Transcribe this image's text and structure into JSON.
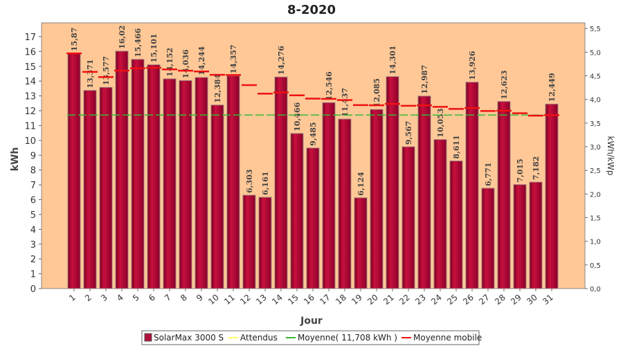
{
  "chart_data": {
    "type": "bar",
    "title": "8-2020",
    "x_label": "Jour",
    "y_label": "kWh",
    "y2_label": "kWh/kWp",
    "categories": [
      "1",
      "2",
      "3",
      "4",
      "5",
      "6",
      "7",
      "8",
      "9",
      "10",
      "11",
      "12",
      "13",
      "14",
      "15",
      "16",
      "17",
      "18",
      "19",
      "20",
      "21",
      "22",
      "23",
      "24",
      "25",
      "26",
      "27",
      "28",
      "29",
      "30",
      "31"
    ],
    "series": [
      {
        "name": "SolarMax 3000 S",
        "color": "#b0103a",
        "values": [
          15.87,
          13.371,
          13.577,
          16.02,
          15.466,
          15.101,
          14.152,
          14.036,
          14.244,
          12.384,
          14.357,
          6.303,
          6.161,
          14.276,
          10.466,
          9.485,
          12.546,
          11.437,
          6.124,
          12.085,
          14.301,
          9.567,
          12.987,
          10.053,
          8.611,
          13.926,
          6.771,
          12.623,
          7.015,
          7.182,
          12.449
        ],
        "value_labels": [
          "15,87",
          "13,371",
          "13,577",
          "16,02",
          "15,466",
          "15,101",
          "14,152",
          "14,036",
          "14,244",
          "12,384",
          "14,357",
          "6,303",
          "6,161",
          "14,276",
          "10,466",
          "9,485",
          "12,546",
          "11,437",
          "6,124",
          "12,085",
          "14,301",
          "9,567",
          "12,987",
          "10,053",
          "8,611",
          "13,926",
          "6,771",
          "12,623",
          "7,015",
          "7,182",
          "12,449"
        ]
      },
      {
        "name": "Attendus",
        "color": "#ffff66"
      },
      {
        "name": "Moyenne( 11,708 kWh )",
        "color": "#33bb33",
        "value": 11.708
      },
      {
        "name": "Moyenne mobile",
        "color": "#ee1111",
        "values": [
          15.87,
          14.62,
          14.27,
          14.71,
          14.86,
          14.9,
          14.79,
          14.7,
          14.65,
          14.42,
          14.41,
          13.73,
          13.15,
          13.23,
          13.04,
          12.82,
          12.8,
          12.72,
          12.38,
          12.37,
          12.46,
          12.33,
          12.36,
          12.26,
          12.12,
          12.18,
          11.98,
          12.0,
          11.83,
          11.67,
          11.7
        ]
      }
    ],
    "ylim": [
      0,
      17.93
    ],
    "yticks": [
      0,
      1,
      2,
      3,
      4,
      5,
      6,
      7,
      8,
      9,
      10,
      11,
      12,
      13,
      14,
      15,
      16,
      17
    ],
    "y2lim": [
      0,
      5.62
    ],
    "y2ticks": [
      {
        "value": 0,
        "label": "0,0"
      },
      {
        "value": 0.5,
        "label": "0,5"
      },
      {
        "value": 1,
        "label": "1,0"
      },
      {
        "value": 1.5,
        "label": "1,5"
      },
      {
        "value": 2,
        "label": "2,0"
      },
      {
        "value": 2.5,
        "label": "2,5"
      },
      {
        "value": 3,
        "label": "3,0"
      },
      {
        "value": 3.5,
        "label": "3,5"
      },
      {
        "value": 4,
        "label": "4,0"
      },
      {
        "value": 4.5,
        "label": "4,5"
      },
      {
        "value": 5,
        "label": "5,0"
      },
      {
        "value": 5.5,
        "label": "5,5"
      }
    ],
    "background": "#ffc896"
  }
}
